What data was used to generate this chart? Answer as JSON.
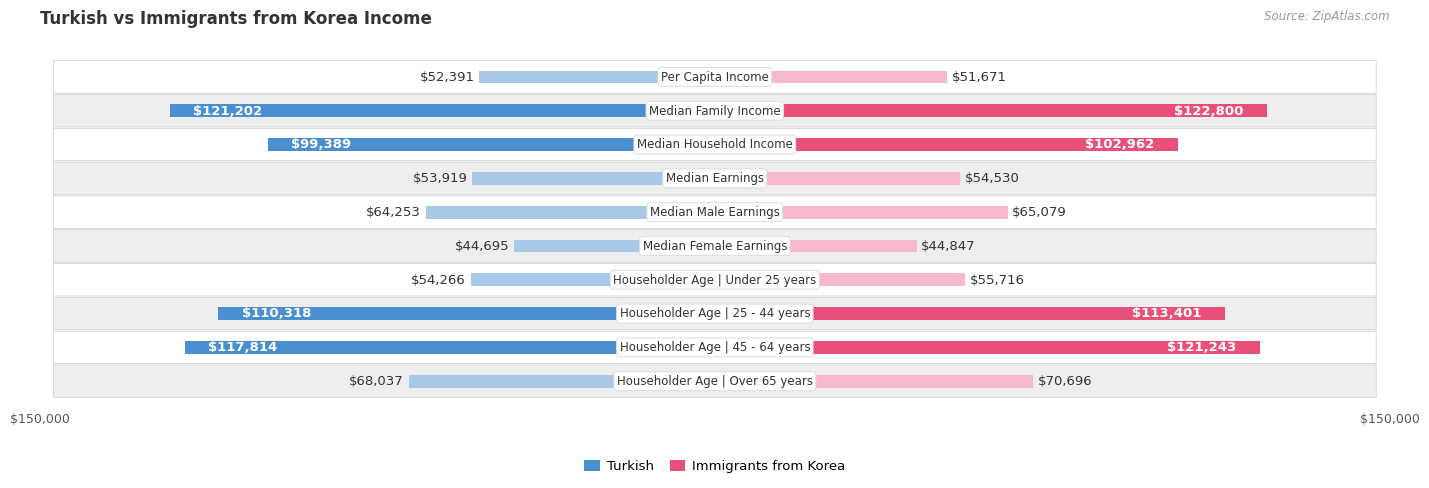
{
  "title": "Turkish vs Immigrants from Korea Income",
  "source": "Source: ZipAtlas.com",
  "categories": [
    "Per Capita Income",
    "Median Family Income",
    "Median Household Income",
    "Median Earnings",
    "Median Male Earnings",
    "Median Female Earnings",
    "Householder Age | Under 25 years",
    "Householder Age | 25 - 44 years",
    "Householder Age | 45 - 64 years",
    "Householder Age | Over 65 years"
  ],
  "turkish_values": [
    52391,
    121202,
    99389,
    53919,
    64253,
    44695,
    54266,
    110318,
    117814,
    68037
  ],
  "korean_values": [
    51671,
    122800,
    102962,
    54530,
    65079,
    44847,
    55716,
    113401,
    121243,
    70696
  ],
  "turkish_labels": [
    "$52,391",
    "$121,202",
    "$99,389",
    "$53,919",
    "$64,253",
    "$44,695",
    "$54,266",
    "$110,318",
    "$117,814",
    "$68,037"
  ],
  "korean_labels": [
    "$51,671",
    "$122,800",
    "$102,962",
    "$54,530",
    "$65,079",
    "$44,847",
    "$55,716",
    "$113,401",
    "$121,243",
    "$70,696"
  ],
  "max_value": 150000,
  "turkish_light": "#a8c8e8",
  "turkish_dark": "#4a90d0",
  "korean_light": "#f8b8cc",
  "korean_dark": "#e8507a",
  "bg_color": "#ffffff",
  "row_light": "#ffffff",
  "row_dark": "#eeeeee",
  "threshold": 80000,
  "label_fontsize": 9.5,
  "cat_fontsize": 8.5,
  "title_fontsize": 12,
  "source_fontsize": 8.5,
  "axis_label": "$150,000",
  "legend_turkish": "Turkish",
  "legend_korean": "Immigrants from Korea"
}
